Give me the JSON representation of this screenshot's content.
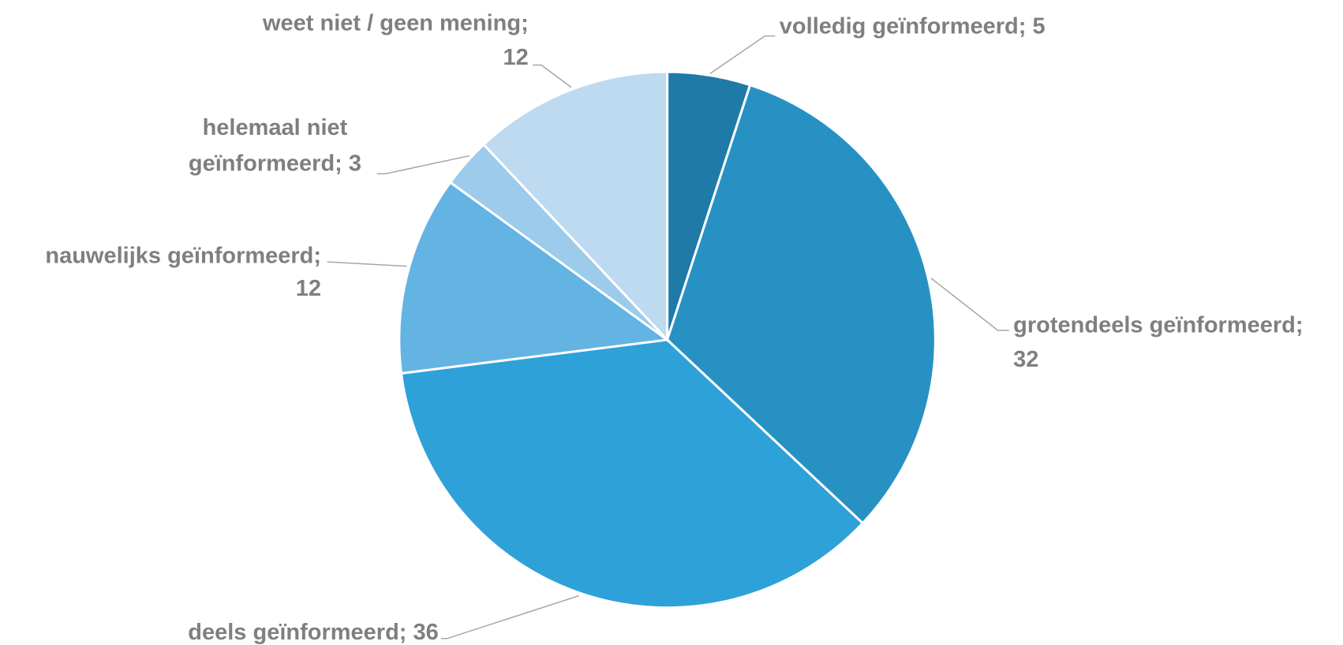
{
  "chart_data": {
    "type": "pie",
    "categories": [
      "volledig geïnformeerd",
      "grotendeels geïnformeerd",
      "deels geïnformeerd",
      "nauwelijks geïnformeerd",
      "helemaal niet geïnformeerd",
      "weet niet / geen mening"
    ],
    "values": [
      5,
      32,
      36,
      12,
      3,
      12
    ],
    "value_labels": [
      "volledig geïnformeerd; 5",
      "grotendeels geïnformeerd; 32",
      "deels geïnformeerd; 36",
      "nauwelijks geïnformeerd; 12",
      "helemaal niet geïnformeerd; 3",
      "weet niet / geen mening; 12"
    ],
    "colors": [
      "#1f7aa8",
      "#2891c4",
      "#2ea1d8",
      "#63b3e3",
      "#9ccbeb",
      "#bddaf0"
    ]
  }
}
